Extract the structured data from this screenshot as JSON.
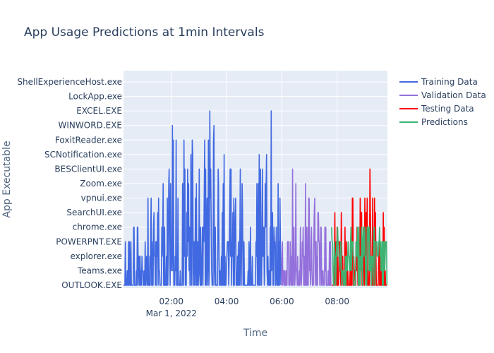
{
  "chart_data": {
    "type": "line",
    "title": "App Usage Predictions at 1min Intervals",
    "xlabel": "Time",
    "ylabel": "App Executable",
    "x_ticks": [
      {
        "label": "02:00",
        "sublabel": "Mar 1, 2022",
        "hours": 2
      },
      {
        "label": "04:00",
        "sublabel": "",
        "hours": 4
      },
      {
        "label": "06:00",
        "sublabel": "",
        "hours": 6
      },
      {
        "label": "08:00",
        "sublabel": "",
        "hours": 8
      }
    ],
    "x_range_hours": [
      0.27,
      9.82
    ],
    "categories": [
      "OUTLOOK.EXE",
      "Teams.exe",
      "explorer.exe",
      "POWERPNT.EXE",
      "chrome.exe",
      "SearchUI.exe",
      "vpnui.exe",
      "Zoom.exe",
      "BESClientUI.exe",
      "SCNotification.exe",
      "FoxitReader.exe",
      "WINWORD.EXE",
      "EXCEL.EXE",
      "LockApp.exe",
      "ShellExperienceHost.exe"
    ],
    "grid": true,
    "legend_position": "top-right",
    "series": [
      {
        "name": "Training Data",
        "color": "#4169e1",
        "start_hours": 0.27,
        "end_hours": 5.97,
        "step_hours": 0.0167,
        "seed": 11,
        "profile": [
          [
            0,
            2
          ],
          [
            0.5,
            4
          ],
          [
            1.0,
            6
          ],
          [
            1.3,
            7
          ],
          [
            1.5,
            8
          ],
          [
            1.8,
            9
          ],
          [
            2.0,
            11
          ],
          [
            2.3,
            12
          ],
          [
            2.6,
            9
          ],
          [
            3.0,
            11
          ],
          [
            3.3,
            13
          ],
          [
            3.6,
            12
          ],
          [
            4.0,
            9
          ],
          [
            4.5,
            8
          ],
          [
            5.0,
            8
          ],
          [
            5.5,
            14
          ],
          [
            5.97,
            6
          ]
        ]
      },
      {
        "name": "Validation Data",
        "color": "#9370db",
        "start_hours": 5.97,
        "end_hours": 7.8,
        "step_hours": 0.0167,
        "seed": 23,
        "profile": [
          [
            5.97,
            4
          ],
          [
            6.3,
            5
          ],
          [
            6.5,
            12
          ],
          [
            6.8,
            6
          ],
          [
            7.0,
            11
          ],
          [
            7.4,
            5
          ],
          [
            7.8,
            4
          ]
        ]
      },
      {
        "name": "Testing Data",
        "color": "#ff0000",
        "start_hours": 7.8,
        "end_hours": 9.82,
        "step_hours": 0.0167,
        "seed": 37,
        "profile": [
          [
            7.8,
            1
          ],
          [
            7.95,
            11
          ],
          [
            8.3,
            4
          ],
          [
            8.6,
            7
          ],
          [
            9.0,
            6
          ],
          [
            9.15,
            11
          ],
          [
            9.5,
            3
          ],
          [
            9.7,
            7
          ],
          [
            9.82,
            1
          ]
        ]
      },
      {
        "name": "Predictions",
        "color": "#3cb371",
        "start_hours": 7.8,
        "end_hours": 9.82,
        "step_hours": 0.0167,
        "seed": 51,
        "profile": [
          [
            7.8,
            1
          ],
          [
            8.0,
            4
          ],
          [
            8.5,
            4
          ],
          [
            9.0,
            4
          ],
          [
            9.5,
            4
          ],
          [
            9.82,
            2
          ]
        ]
      }
    ]
  }
}
